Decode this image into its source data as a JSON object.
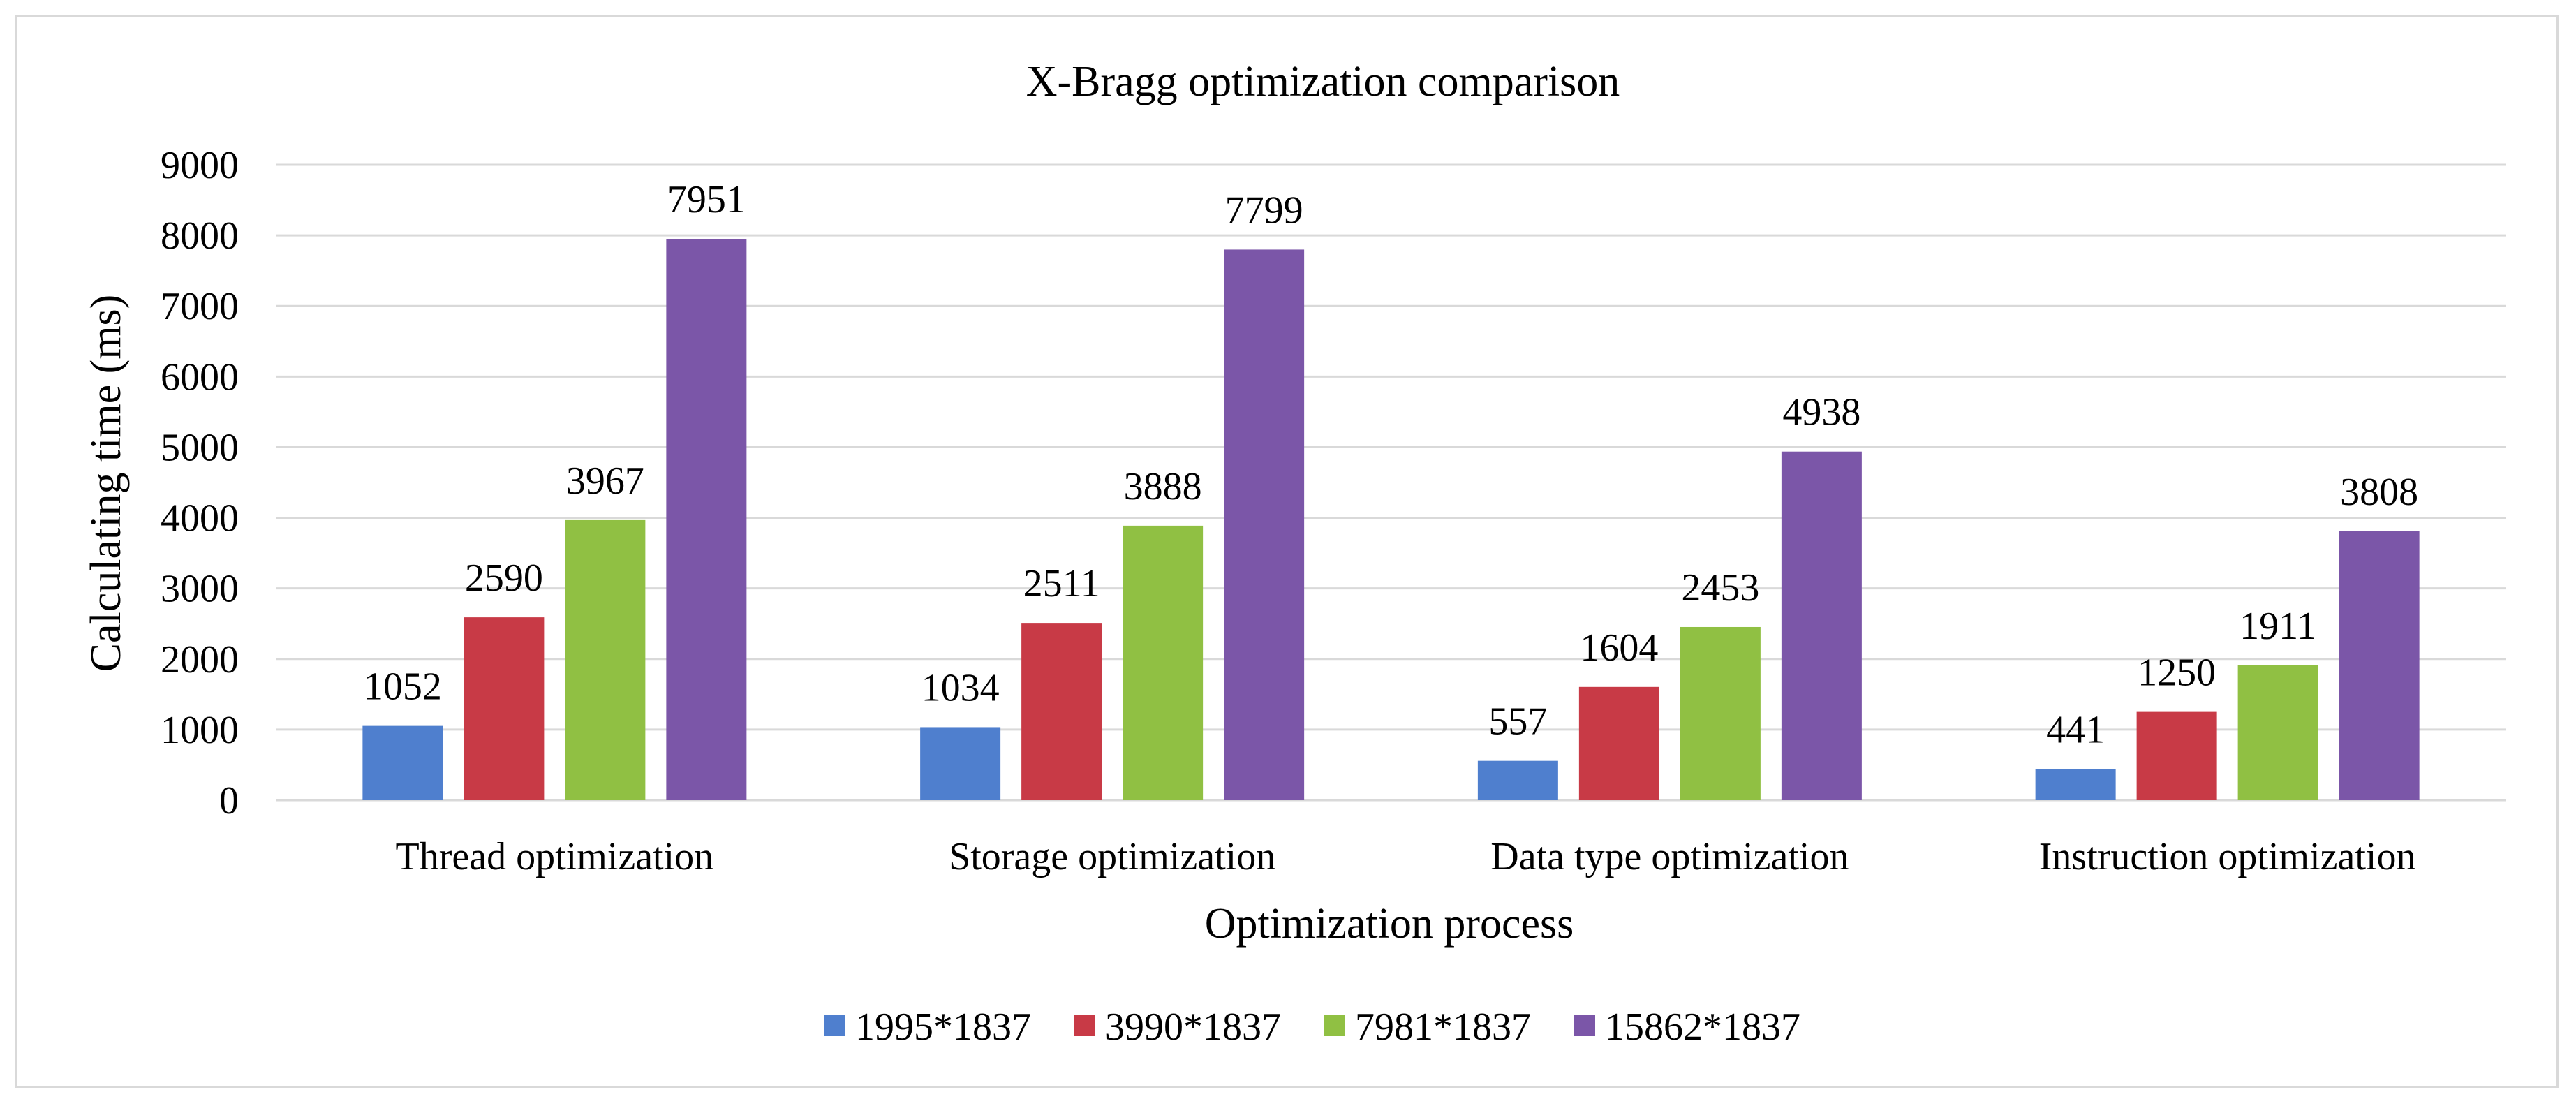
{
  "chart_data": {
    "type": "bar",
    "title": "X-Bragg  optimization  comparison",
    "xlabel": "Optimization  process",
    "ylabel": "Calculating time (ms)",
    "ylim": [
      0,
      9000
    ],
    "yticks": [
      0,
      1000,
      2000,
      3000,
      4000,
      5000,
      6000,
      7000,
      8000,
      9000
    ],
    "grid": true,
    "legend_position": "bottom",
    "categories": [
      "Thread optimization",
      "Storage optimization",
      "Data type optimization",
      "Instruction optimization"
    ],
    "series": [
      {
        "name": "1995*1837",
        "color": "#4f7fce",
        "values": [
          1052,
          1034,
          557,
          441
        ]
      },
      {
        "name": "3990*1837",
        "color": "#c83a46",
        "values": [
          2590,
          2511,
          1604,
          1250
        ]
      },
      {
        "name": "7981*1837",
        "color": "#90c043",
        "values": [
          3967,
          3888,
          2453,
          1911
        ]
      },
      {
        "name": "15862*1837",
        "color": "#7b56a8",
        "values": [
          7951,
          7799,
          4938,
          3808
        ]
      }
    ]
  }
}
